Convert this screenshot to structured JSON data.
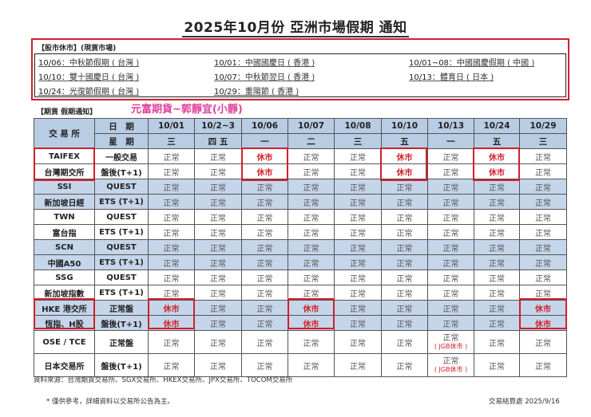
{
  "title": "2025年10月份  亞洲市場假期  通知",
  "stock": {
    "heading": "【股市休市】(現貨市場)",
    "items": [
      {
        "date": "10/06",
        "text": "：中秋節假期 ( 台灣 )"
      },
      {
        "date": "10/01",
        "text": "：中國國慶日 ( 香港 )"
      },
      {
        "date": "10/01~08",
        "text": "：中國國慶假期 ( 中國 )"
      },
      {
        "date": "10/10",
        "text": "：雙十國慶日 ( 台灣 )"
      },
      {
        "date": "10/07",
        "text": "：中秋節翌日 ( 香港 )"
      },
      {
        "date": "10/13",
        "text": "：體育日 ( 日本 )"
      },
      {
        "date": "10/24",
        "text": "：光復節假期 ( 台灣 )"
      },
      {
        "date": "10/29",
        "text": "：重陽節 ( 香港 )"
      }
    ]
  },
  "futures": {
    "heading": "【期貨  假期通知】",
    "broker": "元富期貨~郭靜宜(小靜)"
  },
  "table": {
    "exchange_header": "交 易 所",
    "date_label": "日　期",
    "weekday_label": "星　期",
    "dates": [
      "10/01",
      "10/2~3",
      "10/06",
      "10/07",
      "10/08",
      "10/10",
      "10/13",
      "10/24",
      "10/29"
    ],
    "weekdays": [
      "三",
      "四 五",
      "一",
      "二",
      "三",
      "五",
      "一",
      "五",
      "三"
    ],
    "rows": [
      {
        "exchange": "TAIFEX",
        "session": "一般交易",
        "values": [
          "正常",
          "正常",
          "休市",
          "正常",
          "正常",
          "休市",
          "正常",
          "休市",
          "正常"
        ]
      },
      {
        "exchange": "台灣期交所",
        "session": "盤後(T+1)",
        "values": [
          "正常",
          "正常",
          "休市",
          "正常",
          "正常",
          "休市",
          "正常",
          "休市",
          "正常"
        ]
      },
      {
        "exchange": "SSI",
        "session": "QUEST",
        "values": [
          "正常",
          "正常",
          "正常",
          "正常",
          "正常",
          "正常",
          "正常",
          "正常",
          "正常"
        ]
      },
      {
        "exchange": "新加坡日經",
        "session": "ETS (T+1)",
        "values": [
          "正常",
          "正常",
          "正常",
          "正常",
          "正常",
          "正常",
          "正常",
          "正常",
          "正常"
        ]
      },
      {
        "exchange": "TWN",
        "session": "QUEST",
        "values": [
          "正常",
          "正常",
          "正常",
          "正常",
          "正常",
          "正常",
          "正常",
          "正常",
          "正常"
        ]
      },
      {
        "exchange": "富台指",
        "session": "ETS (T+1)",
        "values": [
          "正常",
          "正常",
          "正常",
          "正常",
          "正常",
          "正常",
          "正常",
          "正常",
          "正常"
        ]
      },
      {
        "exchange": "SCN",
        "session": "QUEST",
        "values": [
          "正常",
          "正常",
          "正常",
          "正常",
          "正常",
          "正常",
          "正常",
          "正常",
          "正常"
        ]
      },
      {
        "exchange": "中國A50",
        "session": "ETS (T+1)",
        "values": [
          "正常",
          "正常",
          "正常",
          "正常",
          "正常",
          "正常",
          "正常",
          "正常",
          "正常"
        ]
      },
      {
        "exchange": "SSG",
        "session": "QUEST",
        "values": [
          "正常",
          "正常",
          "正常",
          "正常",
          "正常",
          "正常",
          "正常",
          "正常",
          "正常"
        ]
      },
      {
        "exchange": "新加坡指數",
        "session": "ETS (T+1)",
        "values": [
          "正常",
          "正常",
          "正常",
          "正常",
          "正常",
          "正常",
          "正常",
          "正常",
          "正常"
        ]
      },
      {
        "exchange": "HKE  港交所",
        "session": "正常盤",
        "values": [
          "休市",
          "正常",
          "正常",
          "休市",
          "正常",
          "正常",
          "正常",
          "正常",
          "休市"
        ]
      },
      {
        "exchange": "恆指、H股",
        "session": "盤後(T+1)",
        "values": [
          "休市",
          "正常",
          "正常",
          "休市",
          "正常",
          "正常",
          "正常",
          "正常",
          "休市"
        ]
      },
      {
        "exchange": "OSE / TCE",
        "session": "正常盤",
        "values": [
          "正常",
          "正常",
          "正常",
          "正常",
          "正常",
          "正常",
          "正常",
          "正常",
          "正常"
        ],
        "note_col": 6,
        "note": "( JGB休市 )"
      },
      {
        "exchange": "日本交易所",
        "session": "盤後(T+1)",
        "values": [
          "正常",
          "正常",
          "正常",
          "正常",
          "正常",
          "正常",
          "正常",
          "正常",
          "正常"
        ],
        "note_col": 6,
        "note": "( JGB休市 )"
      }
    ]
  },
  "footer": {
    "source": "資料來源：台灣期貨交易所、SGX交易所、HKEX交易所、JPX交易所、TOCOM交易所",
    "note": "* 僅供參考，詳細資料以交易所公告為主。",
    "sign": "交易結算處  2025/9/16"
  },
  "colors": {
    "accent_red": "#d0202a",
    "header_blue": "#b8cce4",
    "row_blue": "#c5d5ea",
    "broker_pink": "#e0409a"
  }
}
